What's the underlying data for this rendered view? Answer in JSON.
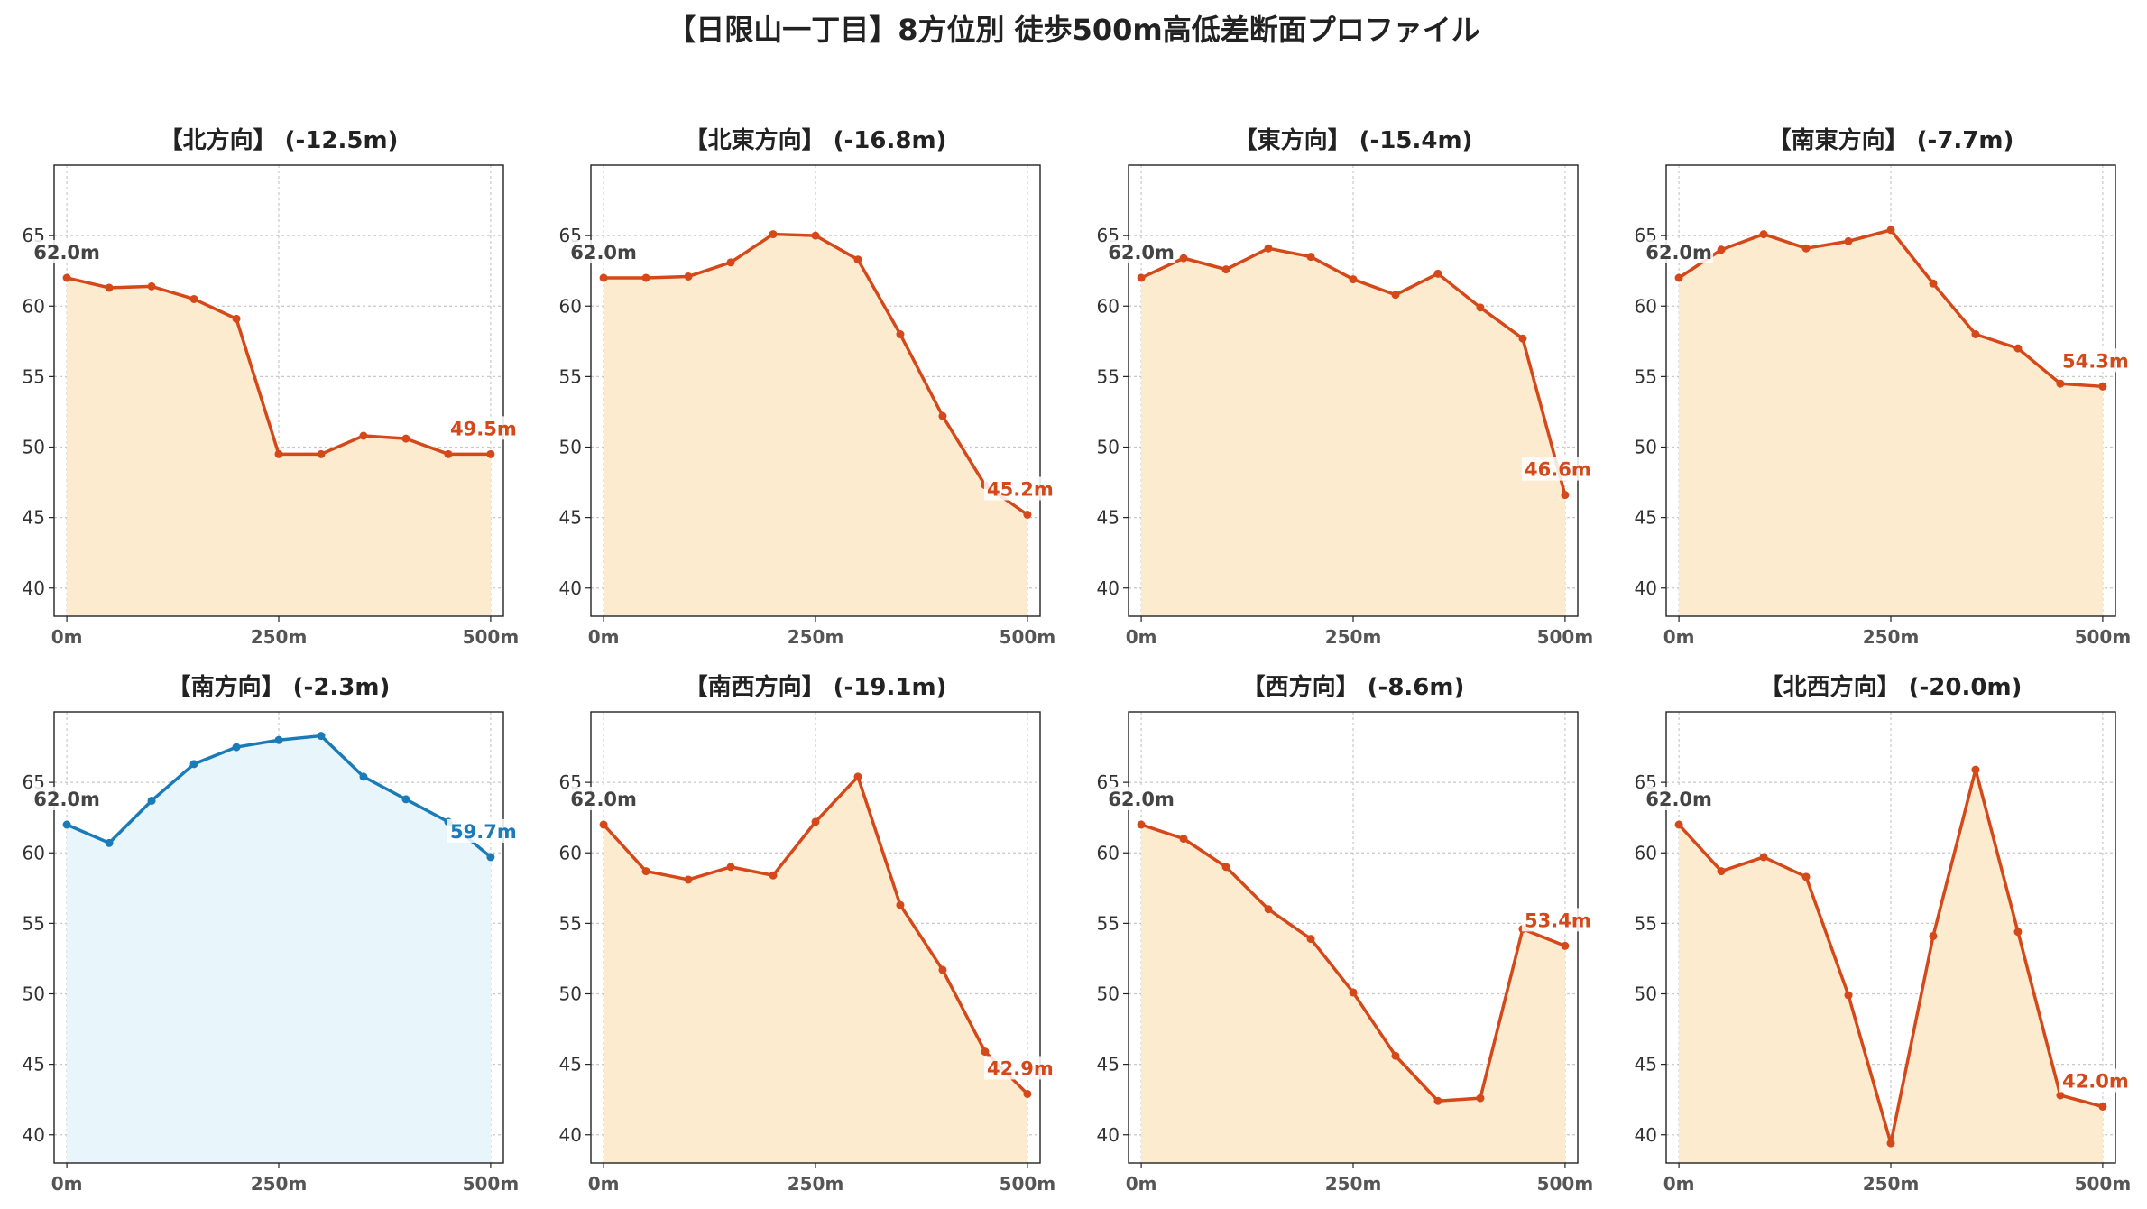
{
  "title": "【日限山一丁目】8方位別 徒歩500m高低差断面プロファイル",
  "colors": {
    "down_line": "#d4481a",
    "down_fill": "#fdebd0",
    "up_line": "#1a7bb8",
    "up_fill": "#e8f6fb",
    "start_label": "#444444"
  },
  "chart_data": [
    {
      "type": "area",
      "title": "【北方向】 (-12.5m)",
      "trend": "down",
      "x": [
        0,
        50,
        100,
        150,
        200,
        250,
        300,
        350,
        400,
        450,
        500
      ],
      "values": [
        62.0,
        61.3,
        61.4,
        60.5,
        59.1,
        49.5,
        49.5,
        50.8,
        50.6,
        49.5,
        49.5
      ],
      "start_label": "62.0m",
      "end_label": "49.5m",
      "xticks": [
        "0m",
        "250m",
        "500m"
      ],
      "yticks": [
        40,
        45,
        50,
        55,
        60,
        65
      ],
      "ylim": [
        38,
        70
      ],
      "grid": true
    },
    {
      "type": "area",
      "title": "【北東方向】 (-16.8m)",
      "trend": "down",
      "x": [
        0,
        50,
        100,
        150,
        200,
        250,
        300,
        350,
        400,
        450,
        500
      ],
      "values": [
        62.0,
        62.0,
        62.1,
        63.1,
        65.1,
        65.0,
        63.3,
        58.0,
        52.2,
        47.3,
        45.2
      ],
      "start_label": "62.0m",
      "end_label": "45.2m",
      "xticks": [
        "0m",
        "250m",
        "500m"
      ],
      "yticks": [
        40,
        45,
        50,
        55,
        60,
        65
      ],
      "ylim": [
        38,
        70
      ],
      "grid": true
    },
    {
      "type": "area",
      "title": "【東方向】 (-15.4m)",
      "trend": "down",
      "x": [
        0,
        50,
        100,
        150,
        200,
        250,
        300,
        350,
        400,
        450,
        500
      ],
      "values": [
        62.0,
        63.4,
        62.6,
        64.1,
        63.5,
        61.9,
        60.8,
        62.3,
        59.9,
        57.7,
        46.6
      ],
      "start_label": "62.0m",
      "end_label": "46.6m",
      "xticks": [
        "0m",
        "250m",
        "500m"
      ],
      "yticks": [
        40,
        45,
        50,
        55,
        60,
        65
      ],
      "ylim": [
        38,
        70
      ],
      "grid": true
    },
    {
      "type": "area",
      "title": "【南東方向】 (-7.7m)",
      "trend": "down",
      "x": [
        0,
        50,
        100,
        150,
        200,
        250,
        300,
        350,
        400,
        450,
        500
      ],
      "values": [
        62.0,
        64.0,
        65.1,
        64.1,
        64.6,
        65.4,
        61.6,
        58.0,
        57.0,
        54.5,
        54.3
      ],
      "start_label": "62.0m",
      "end_label": "54.3m",
      "xticks": [
        "0m",
        "250m",
        "500m"
      ],
      "yticks": [
        40,
        45,
        50,
        55,
        60,
        65
      ],
      "ylim": [
        38,
        70
      ],
      "grid": true
    },
    {
      "type": "area",
      "title": "【南方向】 (-2.3m)",
      "trend": "up",
      "x": [
        0,
        50,
        100,
        150,
        200,
        250,
        300,
        350,
        400,
        450,
        500
      ],
      "values": [
        62.0,
        60.7,
        63.7,
        66.3,
        67.5,
        68.0,
        68.3,
        65.4,
        63.8,
        62.2,
        59.7
      ],
      "start_label": "62.0m",
      "end_label": "59.7m",
      "xticks": [
        "0m",
        "250m",
        "500m"
      ],
      "yticks": [
        40,
        45,
        50,
        55,
        60,
        65
      ],
      "ylim": [
        38,
        70
      ],
      "grid": true
    },
    {
      "type": "area",
      "title": "【南西方向】 (-19.1m)",
      "trend": "down",
      "x": [
        0,
        50,
        100,
        150,
        200,
        250,
        300,
        350,
        400,
        450,
        500
      ],
      "values": [
        62.0,
        58.7,
        58.1,
        59.0,
        58.4,
        62.2,
        65.4,
        56.3,
        51.7,
        45.9,
        42.9
      ],
      "start_label": "62.0m",
      "end_label": "42.9m",
      "xticks": [
        "0m",
        "250m",
        "500m"
      ],
      "yticks": [
        40,
        45,
        50,
        55,
        60,
        65
      ],
      "ylim": [
        38,
        70
      ],
      "grid": true
    },
    {
      "type": "area",
      "title": "【西方向】 (-8.6m)",
      "trend": "down",
      "x": [
        0,
        50,
        100,
        150,
        200,
        250,
        300,
        350,
        400,
        450,
        500
      ],
      "values": [
        62.0,
        61.0,
        59.0,
        56.0,
        53.9,
        50.1,
        45.6,
        42.4,
        42.6,
        54.6,
        53.4
      ],
      "start_label": "62.0m",
      "end_label": "53.4m",
      "xticks": [
        "0m",
        "250m",
        "500m"
      ],
      "yticks": [
        40,
        45,
        50,
        55,
        60,
        65
      ],
      "ylim": [
        38,
        70
      ],
      "grid": true
    },
    {
      "type": "area",
      "title": "【北西方向】 (-20.0m)",
      "trend": "down",
      "x": [
        0,
        50,
        100,
        150,
        200,
        250,
        300,
        350,
        400,
        450,
        500
      ],
      "values": [
        62.0,
        58.7,
        59.7,
        58.3,
        49.9,
        39.4,
        54.1,
        65.9,
        54.4,
        42.8,
        42.0
      ],
      "start_label": "62.0m",
      "end_label": "42.0m",
      "xticks": [
        "0m",
        "250m",
        "500m"
      ],
      "yticks": [
        40,
        45,
        50,
        55,
        60,
        65
      ],
      "ylim": [
        38,
        70
      ],
      "grid": true
    }
  ]
}
